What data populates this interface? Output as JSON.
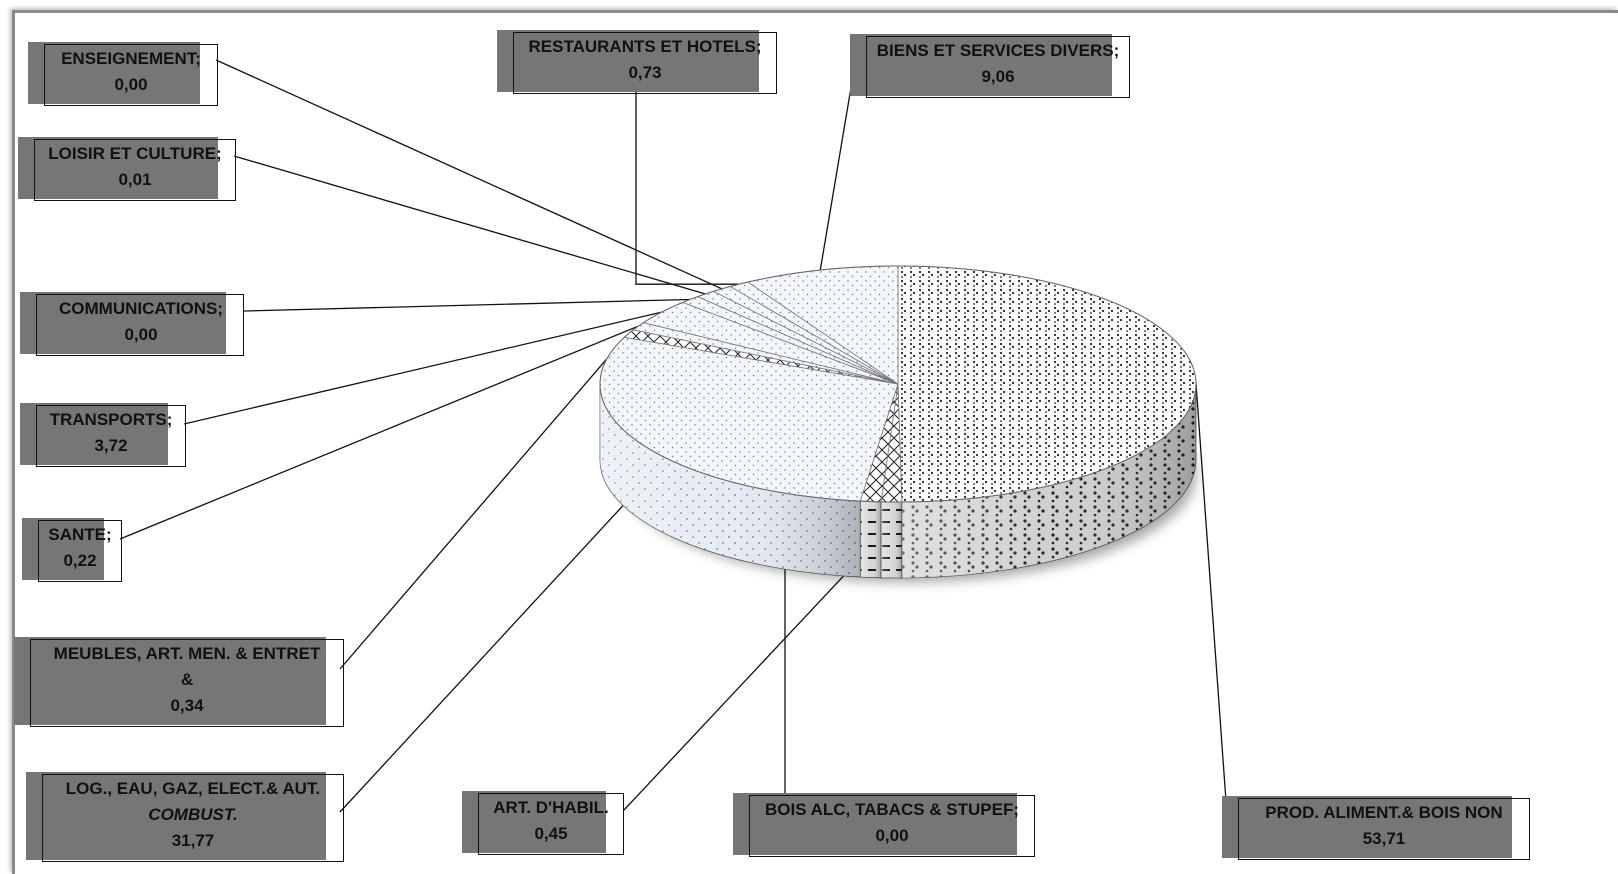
{
  "chart_data": {
    "type": "pie",
    "title": "",
    "style": "3d-exploded-pie-with-pattern-fills",
    "slices": [
      {
        "label": "PROD. ALIMENT.& BOIS NON",
        "value": 53.71,
        "value_label": "53,71"
      },
      {
        "label": "BOIS ALC, TABACS & STUPEF;",
        "value": 0.0,
        "value_label": "0,00"
      },
      {
        "label": "ART. D'HABIL.",
        "value": 0.45,
        "value_label": "0,45"
      },
      {
        "label": "LOG., EAU, GAZ, ELECT.& AUT.",
        "label_line2": "COMBUST.",
        "value": 31.77,
        "value_label": "31,77"
      },
      {
        "label": "MEUBLES, ART. MEN. & ENTRET",
        "label_line2": "&",
        "value": 0.34,
        "value_label": "0,34"
      },
      {
        "label": "SANTE;",
        "value": 0.22,
        "value_label": "0,22"
      },
      {
        "label": "TRANSPORTS;",
        "value": 3.72,
        "value_label": "3,72"
      },
      {
        "label": "COMMUNICATIONS;",
        "value": 0.0,
        "value_label": "0,00"
      },
      {
        "label": "LOISIR ET CULTURE;",
        "value": 0.01,
        "value_label": "0,01"
      },
      {
        "label": "ENSEIGNEMENT;",
        "value": 0.0,
        "value_label": "0,00"
      },
      {
        "label": "RESTAURANTS ET HOTELS;",
        "value": 0.73,
        "value_label": "0,73"
      },
      {
        "label": "BIENS ET SERVICES DIVERS;",
        "value": 9.06,
        "value_label": "9,06"
      }
    ],
    "colors": {
      "label_shadow": "#767676",
      "outline": "#111111",
      "pattern_dot": "#333333",
      "pattern_blue": "#4a6aa0"
    }
  }
}
